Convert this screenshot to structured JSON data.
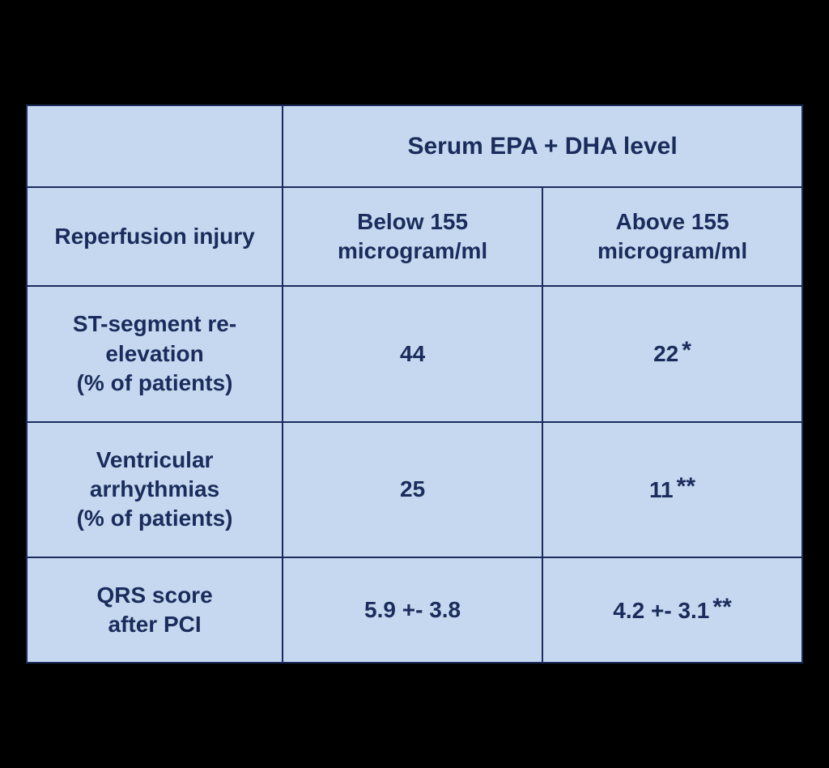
{
  "table": {
    "background_color": "#c6d8ef",
    "border_color": "#1a2c5b",
    "text_color": "#1a2c5b",
    "page_background": "#000000",
    "header": {
      "spanning_title": "Serum EPA + DHA level",
      "row_label": "Reperfusion injury",
      "col1": "Below 155 microgram/ml",
      "col2": "Above 155 microgram/ml"
    },
    "rows": [
      {
        "label": "ST-segment re-elevation\n(% of patients)",
        "below": "44",
        "above": "22",
        "above_marker": "*"
      },
      {
        "label": "Ventricular arrhythmias\n(% of patients)",
        "below": "25",
        "above": "11",
        "above_marker": "**"
      },
      {
        "label": "QRS score\nafter PCI",
        "below": "5.9 +- 3.8",
        "above": "4.2 +- 3.1",
        "above_marker": "**"
      }
    ]
  }
}
